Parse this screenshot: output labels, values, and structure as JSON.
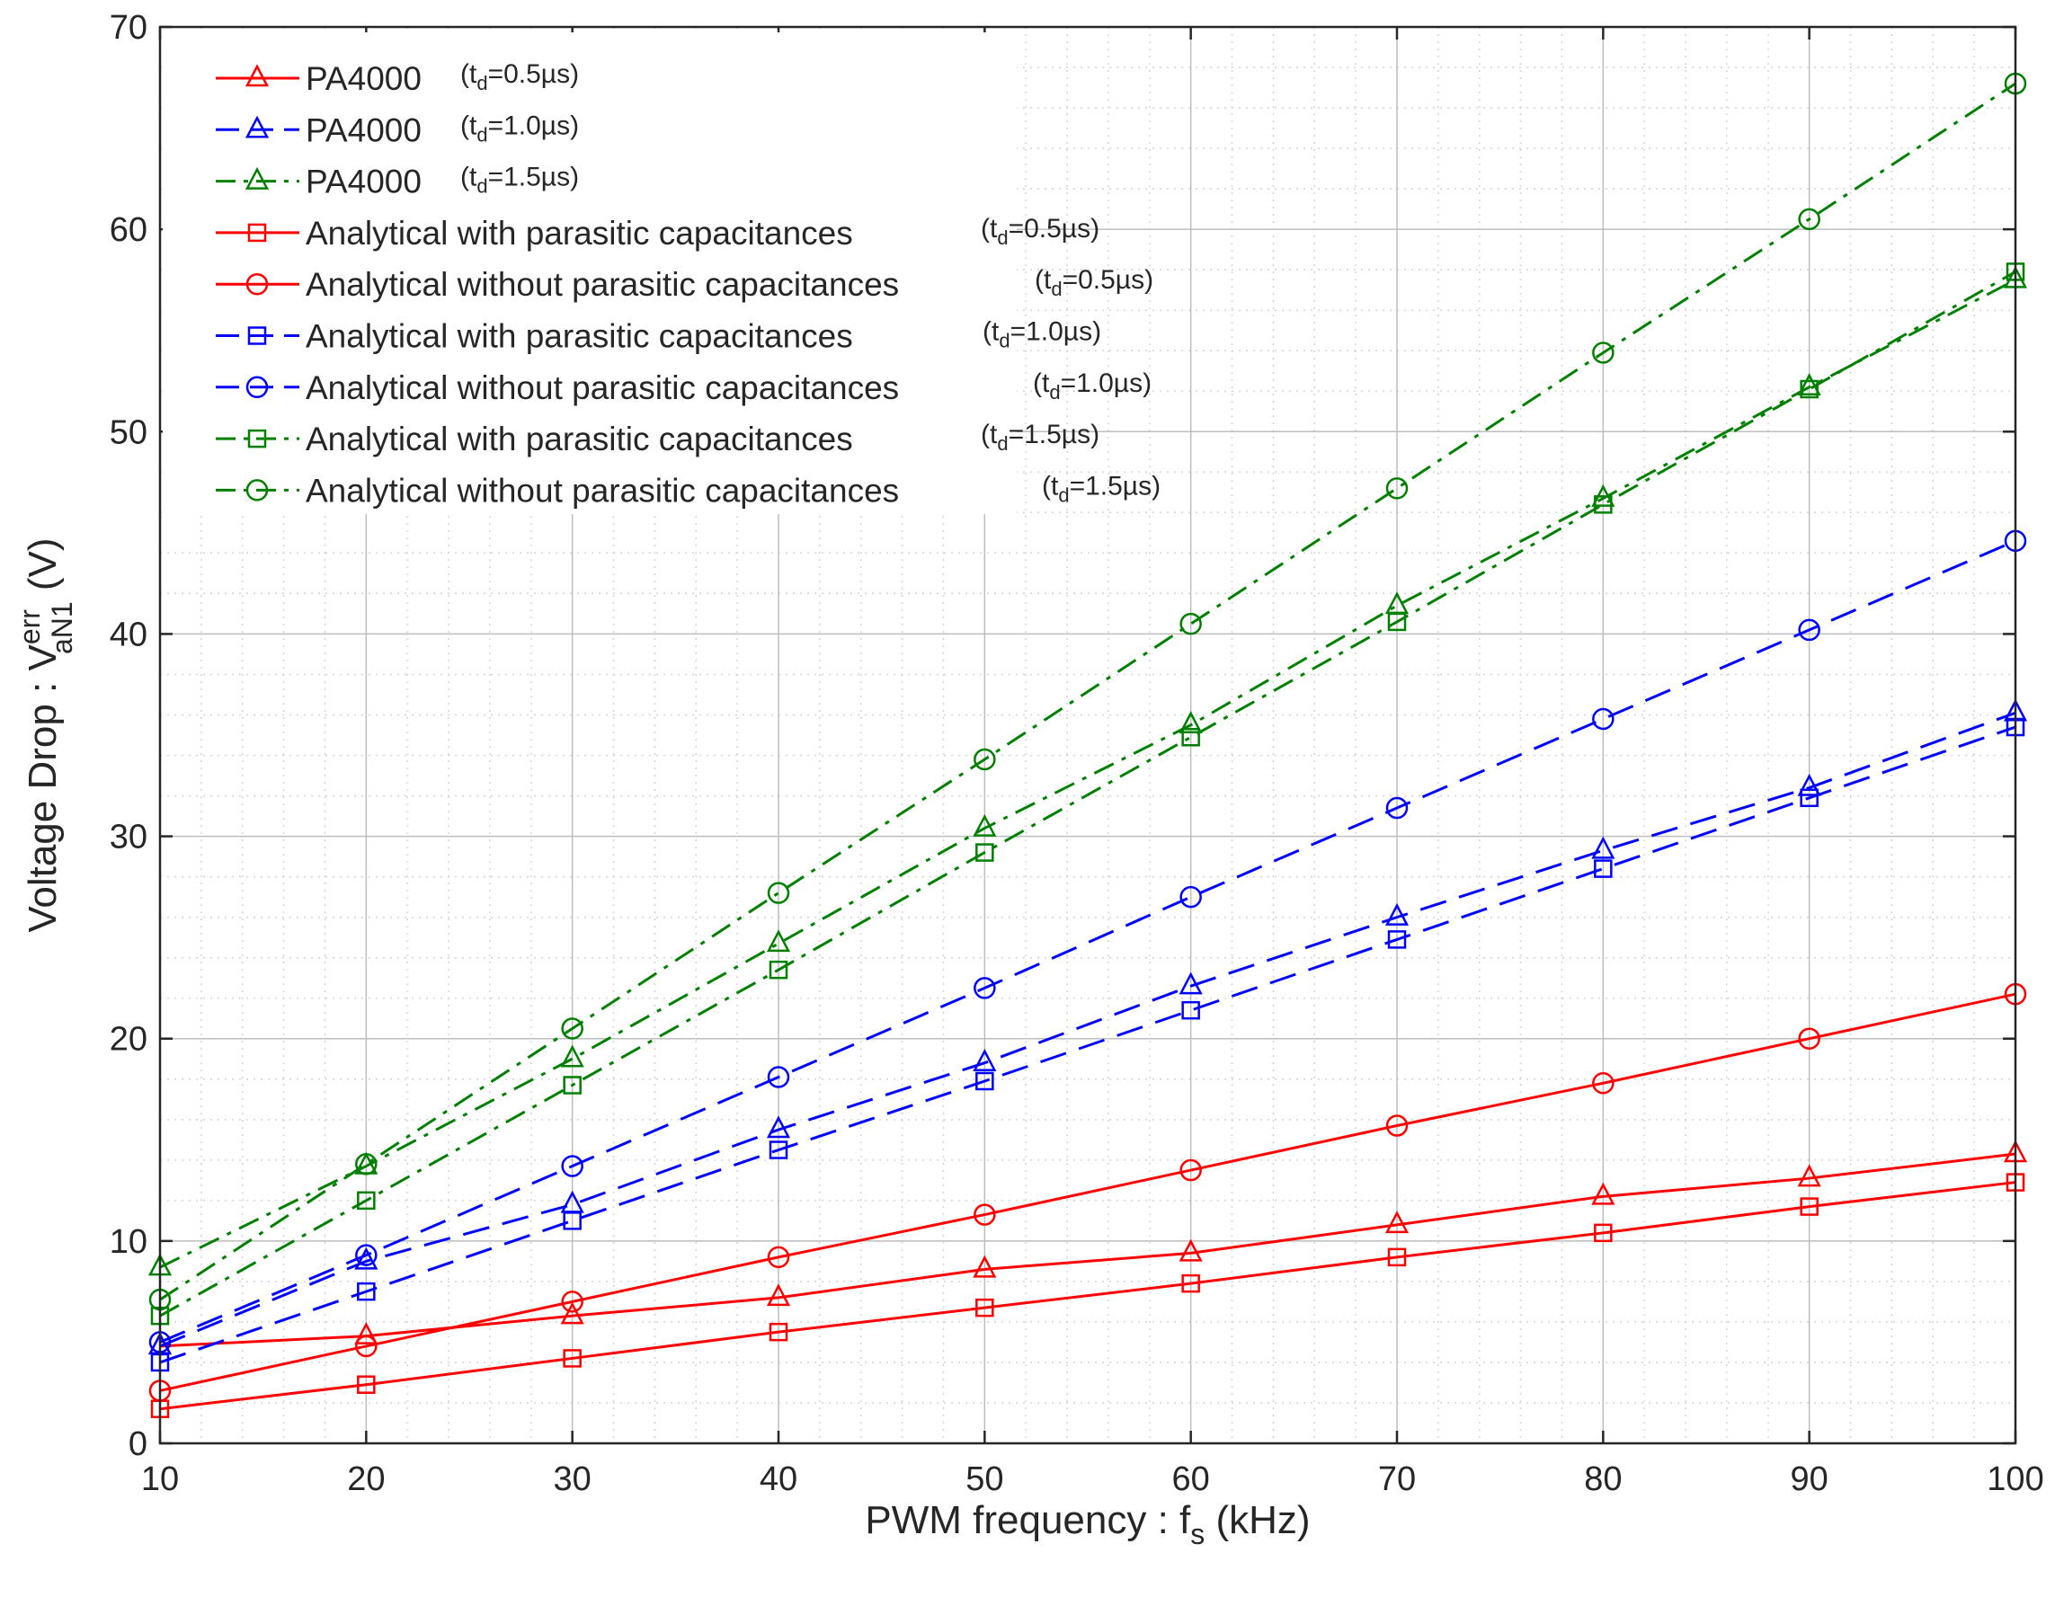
{
  "chart_data": {
    "type": "line",
    "title": "",
    "xlabel": {
      "prefix": "PWM frequency : f",
      "sub": "s",
      "suffix": " (kHz)"
    },
    "ylabel": {
      "prefix": "Voltage Drop : V",
      "sup": "err",
      "sub": "aN1",
      "suffix": "  (V)"
    },
    "xlim": [
      10,
      100
    ],
    "ylim": [
      0,
      70
    ],
    "x_ticks": [
      "10",
      "20",
      "30",
      "40",
      "50",
      "60",
      "70",
      "80",
      "90",
      "100"
    ],
    "y_ticks": [
      "0",
      "10",
      "20",
      "30",
      "40",
      "50",
      "60",
      "70"
    ],
    "grid": "major and minor",
    "legend_position": "top-left",
    "x": [
      10,
      20,
      30,
      40,
      50,
      60,
      70,
      80,
      90,
      100
    ],
    "series": [
      {
        "name": "PA4000",
        "td": "(t",
        "td_sub": "d",
        "td_val": "=0.5µs)",
        "color": "#ff0000",
        "dash": "solid",
        "marker": "triangle",
        "values": [
          4.8,
          5.3,
          6.3,
          7.2,
          8.6,
          9.4,
          10.8,
          12.2,
          13.1,
          14.3
        ]
      },
      {
        "name": "PA4000",
        "td": "(t",
        "td_sub": "d",
        "td_val": "=1.0µs)",
        "color": "#0000ff",
        "dash": "dashed",
        "marker": "triangle",
        "values": [
          4.8,
          9.0,
          11.8,
          15.5,
          18.8,
          22.6,
          26.0,
          29.3,
          32.4,
          36.1
        ]
      },
      {
        "name": "PA4000",
        "td": "(t",
        "td_sub": "d",
        "td_val": "=1.5µs)",
        "color": "#008000",
        "dash": "dashdot",
        "marker": "triangle",
        "values": [
          8.7,
          13.7,
          19.0,
          24.7,
          30.4,
          35.5,
          41.4,
          46.7,
          52.2,
          57.5
        ]
      },
      {
        "name": "Analytical with parasitic capacitances",
        "td": "(t",
        "td_sub": "d",
        "td_val": "=0.5µs)",
        "color": "#ff0000",
        "dash": "solid",
        "marker": "square",
        "values": [
          1.7,
          2.9,
          4.2,
          5.5,
          6.7,
          7.9,
          9.2,
          10.4,
          11.7,
          12.9
        ]
      },
      {
        "name": "Analytical without parasitic capacitances",
        "td": "(t",
        "td_sub": "d",
        "td_val": "=0.5µs)",
        "color": "#ff0000",
        "dash": "solid",
        "marker": "circle",
        "values": [
          2.6,
          4.8,
          7.0,
          9.2,
          11.3,
          13.5,
          15.7,
          17.8,
          20.0,
          22.2
        ]
      },
      {
        "name": "Analytical with parasitic capacitances",
        "td": "(t",
        "td_sub": "d",
        "td_val": "=1.0µs)",
        "color": "#0000ff",
        "dash": "dashed",
        "marker": "square",
        "values": [
          4.0,
          7.5,
          11.0,
          14.5,
          17.9,
          21.4,
          24.9,
          28.4,
          31.9,
          35.4
        ]
      },
      {
        "name": "Analytical without parasitic capacitances",
        "td": "(t",
        "td_sub": "d",
        "td_val": "=1.0µs)",
        "color": "#0000ff",
        "dash": "dashed",
        "marker": "circle",
        "values": [
          5.0,
          9.3,
          13.7,
          18.1,
          22.5,
          27.0,
          31.4,
          35.8,
          40.2,
          44.6
        ]
      },
      {
        "name": "Analytical with parasitic capacitances",
        "td": "(t",
        "td_sub": "d",
        "td_val": "=1.5µs)",
        "color": "#008000",
        "dash": "dashdot",
        "marker": "square",
        "values": [
          6.3,
          12.0,
          17.7,
          23.4,
          29.2,
          34.9,
          40.6,
          46.4,
          52.1,
          57.9
        ]
      },
      {
        "name": "Analytical without parasitic capacitances",
        "td": "(t",
        "td_sub": "d",
        "td_val": "=1.5µs)",
        "color": "#008000",
        "dash": "dashdot",
        "marker": "circle",
        "values": [
          7.1,
          13.8,
          20.5,
          27.2,
          33.8,
          40.5,
          47.2,
          53.9,
          60.5,
          67.2
        ]
      }
    ]
  }
}
